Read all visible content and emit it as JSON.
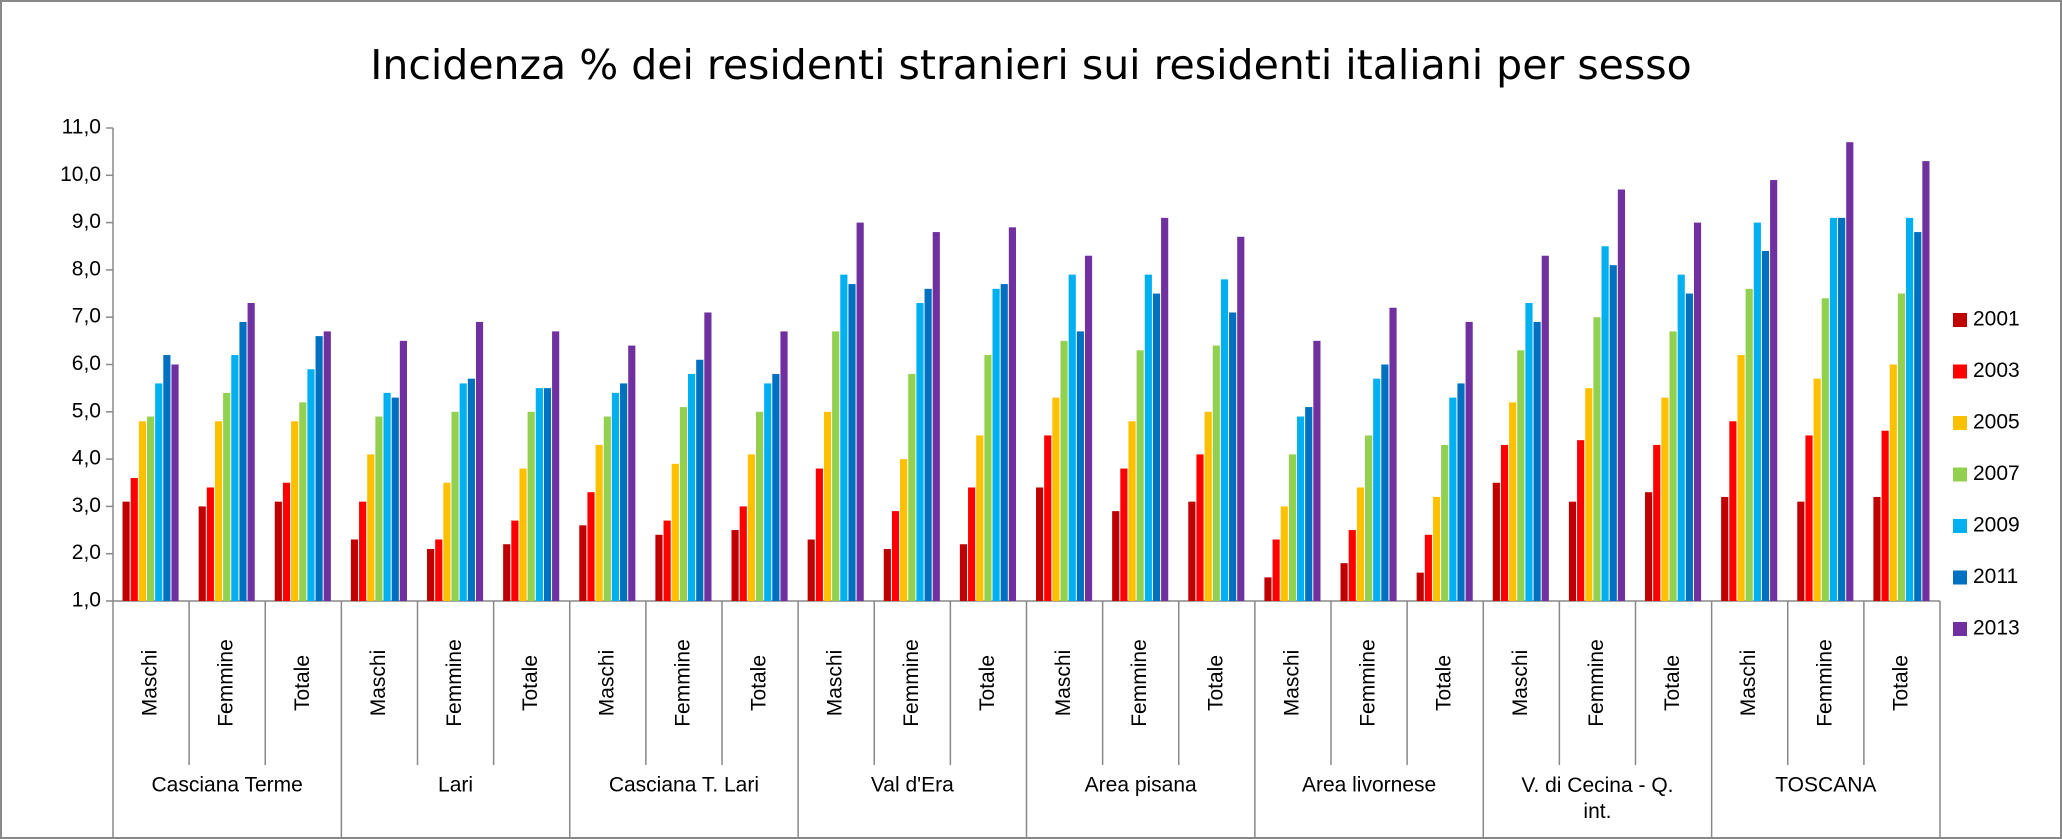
{
  "chart_data": {
    "type": "bar",
    "title": "Incidenza % dei residenti stranieri sui residenti italiani per sesso",
    "categories": [
      "Maschi",
      "Femmine",
      "Totale",
      "Maschi",
      "Femmine",
      "Totale",
      "Maschi",
      "Femmine",
      "Totale",
      "Maschi",
      "Femmine",
      "Totale",
      "Maschi",
      "Femmine",
      "Totale",
      "Maschi",
      "Femmine",
      "Totale",
      "Maschi",
      "Femmine",
      "Totale",
      "Maschi",
      "Femmine",
      "Totale"
    ],
    "groups": [
      "Casciana Terme",
      "Lari",
      "Casciana T. Lari",
      "Val d'Era",
      "Area pisana",
      "Area livornese",
      "V. di Cecina - Q. int.",
      "TOSCANA"
    ],
    "series": [
      {
        "name": "2001",
        "color": "#c00000",
        "values": [
          3.1,
          3.0,
          3.1,
          2.3,
          2.1,
          2.2,
          2.6,
          2.4,
          2.5,
          2.3,
          2.1,
          2.2,
          3.4,
          2.9,
          3.1,
          1.5,
          1.8,
          1.6,
          3.5,
          3.1,
          3.3,
          3.2,
          3.1,
          3.2
        ]
      },
      {
        "name": "2003",
        "color": "#ff0000",
        "values": [
          3.6,
          3.4,
          3.5,
          3.1,
          2.3,
          2.7,
          3.3,
          2.7,
          3.0,
          3.8,
          2.9,
          3.4,
          4.5,
          3.8,
          4.1,
          2.3,
          2.5,
          2.4,
          4.3,
          4.4,
          4.3,
          4.8,
          4.5,
          4.6
        ]
      },
      {
        "name": "2005",
        "color": "#ffc000",
        "values": [
          4.8,
          4.8,
          4.8,
          4.1,
          3.5,
          3.8,
          4.3,
          3.9,
          4.1,
          5.0,
          4.0,
          4.5,
          5.3,
          4.8,
          5.0,
          3.0,
          3.4,
          3.2,
          5.2,
          5.5,
          5.3,
          6.2,
          5.7,
          6.0
        ]
      },
      {
        "name": "2007",
        "color": "#92d050",
        "values": [
          4.9,
          5.4,
          5.2,
          4.9,
          5.0,
          5.0,
          4.9,
          5.1,
          5.0,
          6.7,
          5.8,
          6.2,
          6.5,
          6.3,
          6.4,
          4.1,
          4.5,
          4.3,
          6.3,
          7.0,
          6.7,
          7.6,
          7.4,
          7.5
        ]
      },
      {
        "name": "2009",
        "color": "#00b0f0",
        "values": [
          5.6,
          6.2,
          5.9,
          5.4,
          5.6,
          5.5,
          5.4,
          5.8,
          5.6,
          7.9,
          7.3,
          7.6,
          7.9,
          7.9,
          7.8,
          4.9,
          5.7,
          5.3,
          7.3,
          8.5,
          7.9,
          9.0,
          9.1,
          9.1
        ]
      },
      {
        "name": "2011",
        "color": "#0070c0",
        "values": [
          6.2,
          6.9,
          6.6,
          5.3,
          5.7,
          5.5,
          5.6,
          6.1,
          5.8,
          7.7,
          7.6,
          7.7,
          6.7,
          7.5,
          7.1,
          5.1,
          6.0,
          5.6,
          6.9,
          8.1,
          7.5,
          8.4,
          9.1,
          8.8
        ]
      },
      {
        "name": "2013",
        "color": "#7030a0",
        "values": [
          6.0,
          7.3,
          6.7,
          6.5,
          6.9,
          6.7,
          6.4,
          7.1,
          6.7,
          9.0,
          8.8,
          8.9,
          8.3,
          9.1,
          8.7,
          6.5,
          7.2,
          6.9,
          8.3,
          9.7,
          9.0,
          9.9,
          10.7,
          10.3
        ]
      }
    ],
    "ylim": [
      1,
      11
    ],
    "yticks": [
      {
        "value": 1,
        "label": "1,0"
      },
      {
        "value": 2,
        "label": "2,0"
      },
      {
        "value": 3,
        "label": "3,0"
      },
      {
        "value": 4,
        "label": "4,0"
      },
      {
        "value": 5,
        "label": "5,0"
      },
      {
        "value": 6,
        "label": "6,0"
      },
      {
        "value": 7,
        "label": "7,0"
      },
      {
        "value": 8,
        "label": "8,0"
      },
      {
        "value": 9,
        "label": "9,0"
      },
      {
        "value": 10,
        "label": "10,0"
      },
      {
        "value": 11,
        "label": "11,0"
      }
    ],
    "grid": false,
    "legend": "right"
  }
}
